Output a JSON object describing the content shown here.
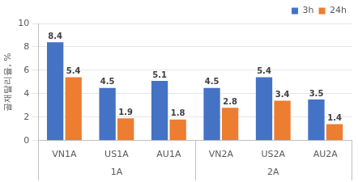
{
  "chart_data": {
    "type": "bar",
    "y_label": "골재탈리율, %",
    "categories": [
      "VN1A",
      "US1A",
      "AU1A",
      "VN2A",
      "US2A",
      "AU2A"
    ],
    "groups": [
      "1A",
      "1A",
      "1A",
      "2A",
      "2A",
      "2A"
    ],
    "series": [
      {
        "name": "3h",
        "color": "#4472c4",
        "values": [
          8.4,
          4.5,
          5.1,
          4.5,
          5.4,
          3.5
        ]
      },
      {
        "name": "24h",
        "color": "#ed7d31",
        "values": [
          5.4,
          1.9,
          1.8,
          2.8,
          3.4,
          1.4
        ]
      }
    ],
    "ylim": [
      0,
      10
    ],
    "yticks": [
      0,
      2,
      4,
      6,
      8,
      10
    ],
    "grid": true,
    "legend": "top right",
    "data_labels": true
  }
}
